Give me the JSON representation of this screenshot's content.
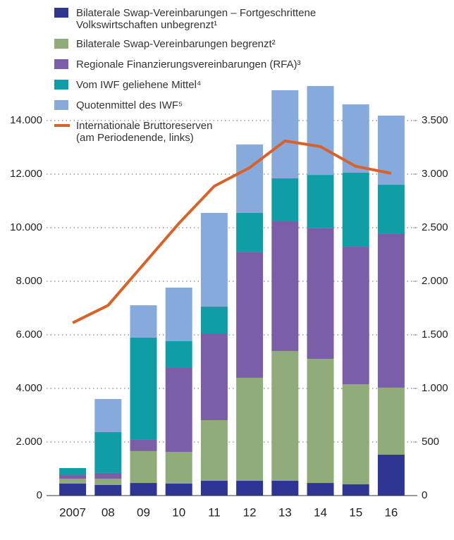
{
  "chart_data": {
    "type": "bar",
    "categories": [
      "2007",
      "08",
      "09",
      "10",
      "11",
      "12",
      "13",
      "14",
      "15",
      "16"
    ],
    "series": [
      {
        "name": "Bilaterale Swap-Vereinbarungen – Fortgeschrittene\nVolkswirtschaften unbegrenzt¹",
        "color": "#2e3592",
        "axis": "y2",
        "values": [
          112,
          99,
          118,
          112,
          138,
          138,
          138,
          118,
          105,
          382
        ]
      },
      {
        "name": "Bilaterale Swap-Vereinbarungen begrenzt²",
        "color": "#8fac7a",
        "axis": "y2",
        "values": [
          46,
          59,
          297,
          296,
          566,
          961,
          1211,
          1158,
          934,
          625
        ]
      },
      {
        "name": "Regionale Finanzierungsvereinbarungen (RFA)³",
        "color": "#7a5ea8",
        "axis": "y2",
        "values": [
          39,
          53,
          105,
          789,
          809,
          1171,
          1210,
          1218,
          1283,
          1434
        ]
      },
      {
        "name": "Vom IWF geliehene Mittel⁴",
        "color": "#0f9ea6",
        "axis": "y2",
        "values": [
          60,
          381,
          954,
          244,
          250,
          368,
          402,
          499,
          691,
          460
        ]
      },
      {
        "name": "Quotenmittel des IWF⁵",
        "color": "#86aadc",
        "axis": "y2",
        "values": [
          0,
          309,
          302,
          500,
          875,
          639,
          822,
          829,
          638,
          645
        ]
      },
      {
        "name": "Internationale Bruttoreserven\n(am Periodenende, links)",
        "color": "#d9622b",
        "type": "line",
        "values": [
          6450,
          7100,
          8630,
          10160,
          11550,
          12240,
          13240,
          13030,
          12290,
          12030
        ]
      }
    ],
    "stacked": true,
    "ylim": [
      0,
      16000
    ],
    "yticks": [
      0,
      {
        "value": 2000,
        "label": "2.000"
      },
      {
        "value": 4000,
        "label": "4.000"
      },
      {
        "value": 6000,
        "label": "6.000"
      },
      {
        "value": 8000,
        "label": "8.000"
      },
      {
        "value": 10000,
        "label": "10.000"
      },
      {
        "value": 12000,
        "label": "12.000"
      },
      {
        "value": 14000,
        "label": "14.000"
      }
    ],
    "y2lim": [
      0,
      4000
    ],
    "y2ticks": [
      0,
      500,
      {
        "value": 1000,
        "label": "1.000"
      },
      {
        "value": 1500,
        "label": "1.500"
      },
      {
        "value": 2000,
        "label": "2.000"
      },
      {
        "value": 2500,
        "label": "2.500"
      },
      {
        "value": 3000,
        "label": "3.000"
      },
      {
        "value": 3500,
        "label": "3.500"
      }
    ],
    "grid": true
  }
}
